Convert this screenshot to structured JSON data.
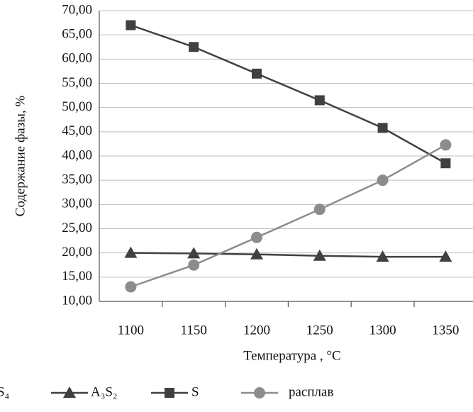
{
  "chart_data": {
    "type": "line",
    "x_label": "Температура , °C",
    "y_label": "Содержание фазы, %",
    "categories": [
      1100,
      1150,
      1200,
      1250,
      1300,
      1350
    ],
    "ylim": [
      10,
      70
    ],
    "yticks": [
      {
        "value": 10,
        "label": "10,00"
      },
      {
        "value": 15,
        "label": "15,00"
      },
      {
        "value": 20,
        "label": "20,00"
      },
      {
        "value": 25,
        "label": "25,00"
      },
      {
        "value": 30,
        "label": "30,00"
      },
      {
        "value": 35,
        "label": "35,00"
      },
      {
        "value": 40,
        "label": "40,00"
      },
      {
        "value": 45,
        "label": "45,00"
      },
      {
        "value": 50,
        "label": "50,00"
      },
      {
        "value": 55,
        "label": "55,00"
      },
      {
        "value": 60,
        "label": "60,00"
      },
      {
        "value": 65,
        "label": "65,00"
      },
      {
        "value": 70,
        "label": "70,00"
      }
    ],
    "grid": true,
    "legend_fragment": "S₄",
    "series": [
      {
        "name": "A₃S₂",
        "color": "#404040",
        "marker": "triangle",
        "values": [
          20.0,
          19.9,
          19.7,
          19.4,
          19.2,
          19.2
        ]
      },
      {
        "name": "S",
        "color": "#404040",
        "marker": "square",
        "values": [
          67.0,
          62.5,
          57.0,
          51.5,
          45.8,
          38.5
        ]
      },
      {
        "name": "расплав",
        "color": "#8c8c8c",
        "marker": "circle",
        "values": [
          13.0,
          17.5,
          23.2,
          29.0,
          35.0,
          42.3
        ]
      }
    ]
  }
}
